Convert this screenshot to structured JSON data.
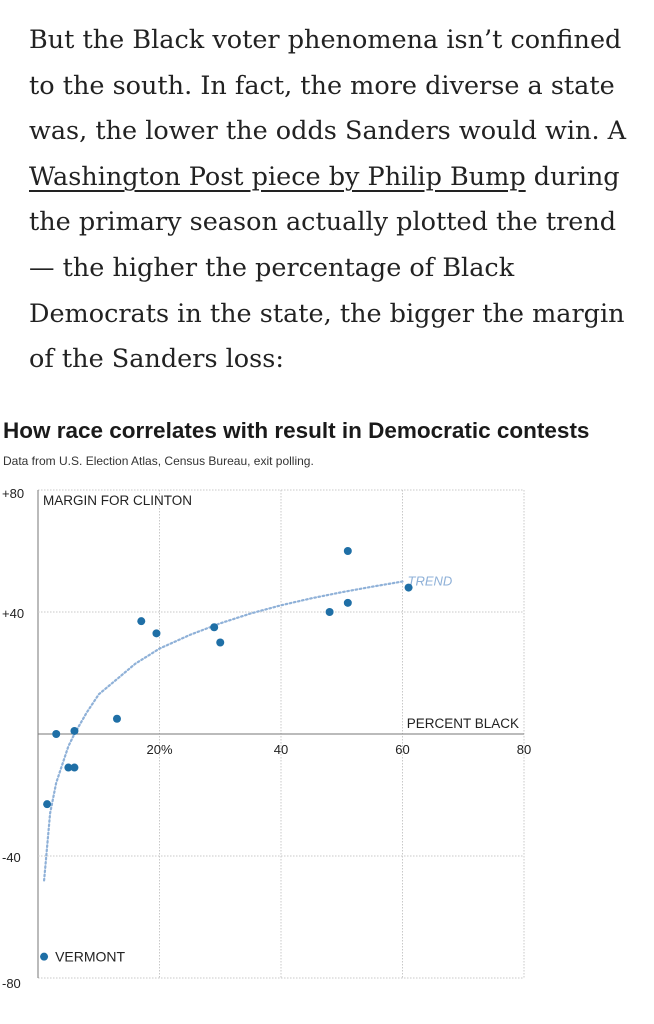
{
  "article": {
    "text_before_link": "But the Black voter phenomena isn’t confined to the south. In fact, the more diverse a state was, the lower the odds Sanders would win. A ",
    "link_text": "Washington Post piece by Philip Bump",
    "text_after_link": " during the primary season actually plotted the trend — the higher the percentage of Black Democrats in the state, the bigger the margin of the Sanders loss:"
  },
  "chart_data": {
    "type": "scatter",
    "title": "How race correlates with result in Democratic contests",
    "subtitle": "Data from U.S. Election Atlas, Census Bureau, exit polling.",
    "xlabel": "PERCENT BLACK",
    "ylabel": "MARGIN FOR CLINTON",
    "xlim": [
      0,
      80
    ],
    "ylim": [
      -80,
      80
    ],
    "x_ticks": [
      {
        "value": 20,
        "label": "20%"
      },
      {
        "value": 40,
        "label": "40"
      },
      {
        "value": 60,
        "label": "60"
      },
      {
        "value": 80,
        "label": "80"
      }
    ],
    "y_ticks": [
      {
        "value": 80,
        "label": "+80"
      },
      {
        "value": 40,
        "label": "+40"
      },
      {
        "value": -40,
        "label": "-40"
      },
      {
        "value": -80,
        "label": "-80"
      }
    ],
    "grid": true,
    "points": [
      {
        "x": 1,
        "y": -73
      },
      {
        "x": 1.5,
        "y": -23
      },
      {
        "x": 3,
        "y": 0
      },
      {
        "x": 5,
        "y": -11
      },
      {
        "x": 6,
        "y": -11
      },
      {
        "x": 6,
        "y": 1
      },
      {
        "x": 13,
        "y": 5
      },
      {
        "x": 17,
        "y": 37
      },
      {
        "x": 19.5,
        "y": 33
      },
      {
        "x": 29,
        "y": 35
      },
      {
        "x": 30,
        "y": 30
      },
      {
        "x": 48,
        "y": 40
      },
      {
        "x": 51,
        "y": 43
      },
      {
        "x": 51,
        "y": 60
      },
      {
        "x": 61,
        "y": 48
      }
    ],
    "trend": {
      "label": "TREND",
      "x": [
        1,
        2,
        3,
        4,
        5,
        6,
        8,
        10,
        13,
        16,
        20,
        25,
        30,
        35,
        40,
        45,
        50,
        55,
        60
      ],
      "y": [
        -48,
        -26,
        -16,
        -10,
        -4,
        0,
        7,
        13,
        18,
        23,
        28,
        32.5,
        36.3,
        39.5,
        42.2,
        44.5,
        46.5,
        48.3,
        50
      ]
    },
    "annotations": [
      {
        "label": "VERMONT",
        "x": 1,
        "y": -73
      }
    ],
    "colors": {
      "point": "#1f6fa6",
      "trend": "#8fb1d8",
      "grid": "#c8c8c8",
      "axis_text": "#222222"
    }
  }
}
